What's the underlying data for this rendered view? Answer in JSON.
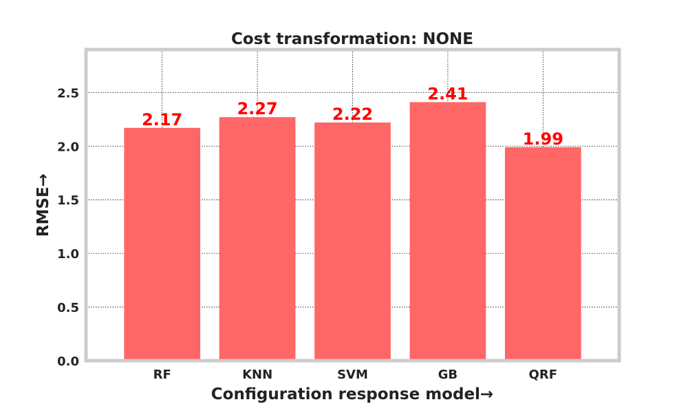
{
  "chart_data": {
    "type": "bar",
    "title": "Cost transformation: NONE",
    "xlabel": "Configuration response model→",
    "ylabel": "RMSE→",
    "categories": [
      "RF",
      "KNN",
      "SVM",
      "GB",
      "QRF"
    ],
    "values": [
      2.17,
      2.27,
      2.22,
      2.41,
      1.99
    ],
    "value_labels": [
      "2.17",
      "2.27",
      "2.22",
      "2.41",
      "1.99"
    ],
    "ylim": [
      0,
      2.9
    ],
    "yticks": [
      "0.0",
      "0.5",
      "1.0",
      "1.5",
      "2.0",
      "2.5"
    ],
    "grid": true,
    "colors": {
      "bar": "#ff6666",
      "value_label": "#ff0000",
      "frame": "#cccccc",
      "text": "#222222"
    }
  }
}
